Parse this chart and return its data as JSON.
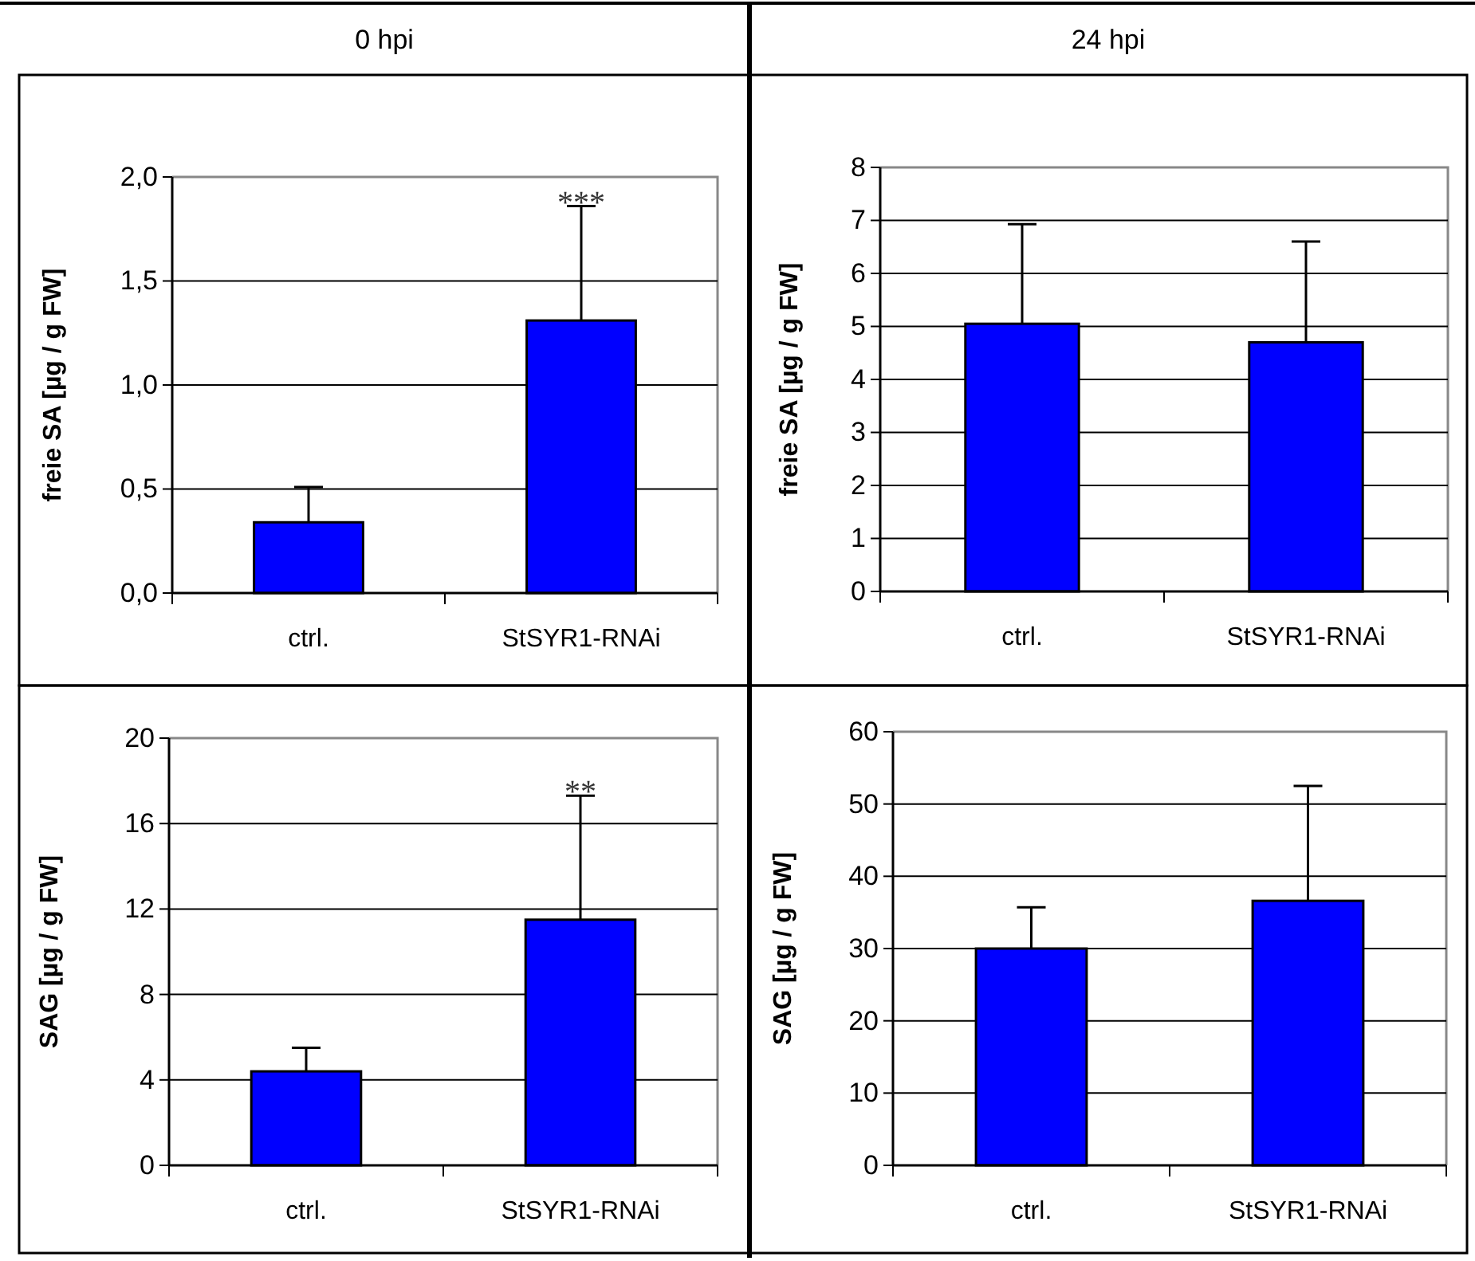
{
  "chart_data": [
    {
      "type": "bar",
      "title": "0 hpi",
      "ylabel": "freie SA [µg / g FW]",
      "categories": [
        "ctrl.",
        "StSYR1-RNAi"
      ],
      "series": [
        {
          "color": "#0000ff",
          "values": [
            0.34,
            1.31
          ],
          "errors": [
            [
              0.34,
              0.51
            ],
            [
              1.31,
              1.86
            ]
          ]
        }
      ],
      "ylim": [
        0,
        2
      ],
      "yticks": [
        {
          "value": 0,
          "label": "0,0"
        },
        {
          "value": 0.5,
          "label": "0,5"
        },
        {
          "value": 1,
          "label": "1,0"
        },
        {
          "value": 1.5,
          "label": "1,5"
        },
        {
          "value": 2,
          "label": "2,0"
        }
      ],
      "grid": "y",
      "annotations": [
        {
          "text": "***",
          "x": "StSYR1-RNAi",
          "y": 1.86
        }
      ]
    },
    {
      "type": "bar",
      "title": "24 hpi",
      "ylabel": "freie SA [µg / g FW]",
      "categories": [
        "ctrl.",
        "StSYR1-RNAi"
      ],
      "series": [
        {
          "color": "#0000ff",
          "values": [
            5.05,
            4.7
          ],
          "errors": [
            [
              5.05,
              6.93
            ],
            [
              4.7,
              6.6
            ]
          ]
        }
      ],
      "ylim": [
        0,
        8
      ],
      "yticks": [
        0,
        1,
        2,
        3,
        4,
        5,
        6,
        7,
        8
      ],
      "grid": "y"
    },
    {
      "type": "bar",
      "ylabel": "SAG [µg / g FW]",
      "categories": [
        "ctrl.",
        "StSYR1-RNAi"
      ],
      "series": [
        {
          "color": "#0000ff",
          "values": [
            4.4,
            11.5
          ],
          "errors": [
            [
              4.4,
              5.5
            ],
            [
              11.5,
              17.3
            ]
          ]
        }
      ],
      "ylim": [
        0,
        20
      ],
      "yticks": [
        0,
        4,
        8,
        12,
        16,
        20
      ],
      "grid": "y",
      "annotations": [
        {
          "text": "**",
          "x": "StSYR1-RNAi",
          "y": 17.3
        }
      ]
    },
    {
      "type": "bar",
      "ylabel": "SAG [µg / g FW]",
      "categories": [
        "ctrl.",
        "StSYR1-RNAi"
      ],
      "series": [
        {
          "color": "#0000ff",
          "values": [
            30,
            36.6
          ],
          "errors": [
            [
              30,
              35.7
            ],
            [
              36.6,
              52.5
            ]
          ]
        }
      ],
      "ylim": [
        0,
        60
      ],
      "yticks": [
        0,
        10,
        20,
        30,
        40,
        50,
        60
      ],
      "grid": "y"
    }
  ]
}
